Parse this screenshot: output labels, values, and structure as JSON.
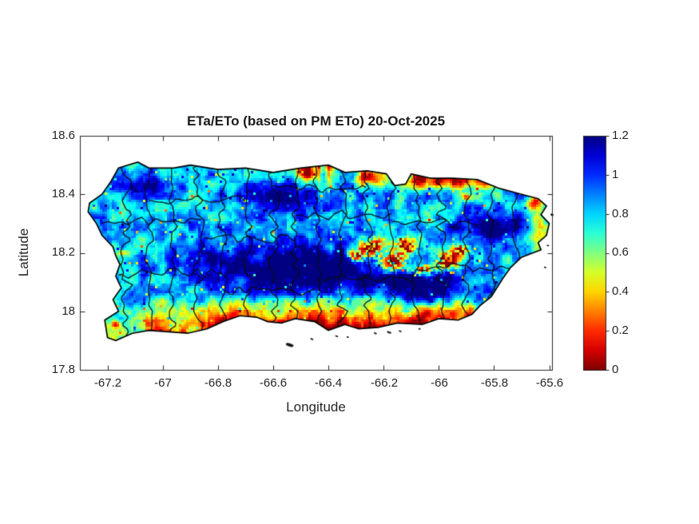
{
  "figure": {
    "background": "#ffffff",
    "kind": "MATLAB-style geographic heatmap figure"
  },
  "chart_data": {
    "type": "heatmap",
    "title": "ETa/ETo (based on PM ETo) 20-Oct-2025",
    "xlabel": "Longitude",
    "ylabel": "Latitude",
    "region": "Puerto Rico with municipality boundaries",
    "xlim": [
      -67.3,
      -65.59
    ],
    "ylim": [
      17.8,
      18.6
    ],
    "xticks": [
      -67.2,
      -67,
      -66.8,
      -66.6,
      -66.4,
      -66.2,
      -66,
      -65.8,
      -65.6
    ],
    "xtick_labels": [
      "-67.2",
      "-67",
      "-66.8",
      "-66.6",
      "-66.4",
      "-66.2",
      "-66",
      "-65.8",
      "-65.6"
    ],
    "yticks": [
      18.6,
      18.4,
      18.2,
      18,
      17.8
    ],
    "ytick_labels": [
      "18.6",
      "18.4",
      "18.2",
      "18",
      "17.8"
    ],
    "grid": false,
    "axis_color": "#262626",
    "boundary_color": "#111111",
    "colorbar": {
      "min": 0,
      "max": 1.2,
      "ticks": [
        1.2,
        1,
        0.8,
        0.6,
        0.4,
        0.2,
        0
      ],
      "tick_labels": [
        "1.2",
        "1",
        "0.8",
        "0.6",
        "0.4",
        "0.2",
        "0"
      ],
      "colormap": "jet reversed (0 = dark red, 0.2 = red, 0.4 = yellow, 0.6 = green, 0.8 = cyan, 1 = blue, 1.2 = dark blue)",
      "position": "right"
    },
    "base_value": 0.82,
    "field_features": [
      {
        "name": "cordillera-central-high-eta",
        "lon": -66.47,
        "lat": 18.15,
        "sx": 0.3,
        "sy": 0.075,
        "amp": 0.55
      },
      {
        "name": "cayey-east-ridge-high-eta",
        "lon": -66.05,
        "lat": 18.09,
        "sx": 0.16,
        "sy": 0.055,
        "amp": 0.5
      },
      {
        "name": "sierra-de-luquillo-high-eta",
        "lon": -65.82,
        "lat": 18.29,
        "sx": 0.1,
        "sy": 0.055,
        "amp": 0.5
      },
      {
        "name": "arecibo-karst-high",
        "lon": -66.58,
        "lat": 18.38,
        "sx": 0.17,
        "sy": 0.07,
        "amp": 0.32
      },
      {
        "name": "northwest-high",
        "lon": -67.05,
        "lat": 18.43,
        "sx": 0.09,
        "sy": 0.05,
        "amp": 0.28
      },
      {
        "name": "west-central-high",
        "lon": -66.85,
        "lat": 18.17,
        "sx": 0.13,
        "sy": 0.05,
        "amp": 0.25
      },
      {
        "name": "san-juan-urban-low",
        "lon": -65.95,
        "lat": 18.445,
        "sx": 0.16,
        "sy": 0.025,
        "amp": -0.62
      },
      {
        "name": "dorado-urban-low",
        "lon": -66.24,
        "lat": 18.455,
        "sx": 0.06,
        "sy": 0.022,
        "amp": -0.5
      },
      {
        "name": "arecibo-urban-dot",
        "lon": -66.49,
        "lat": 18.47,
        "sx": 0.035,
        "sy": 0.02,
        "amp": -0.55
      },
      {
        "name": "carolina-dot",
        "lon": -65.9,
        "lat": 18.39,
        "sx": 0.018,
        "sy": 0.012,
        "amp": -0.6
      },
      {
        "name": "east-coast-low-strip",
        "lon": -65.64,
        "lat": 18.3,
        "sx": 0.025,
        "sy": 0.07,
        "amp": -0.45
      },
      {
        "name": "fajardo-low",
        "lon": -65.655,
        "lat": 18.37,
        "sx": 0.03,
        "sy": 0.025,
        "amp": -0.5
      },
      {
        "name": "mayaguez-dot",
        "lon": -67.14,
        "lat": 18.2,
        "sx": 0.02,
        "sy": 0.012,
        "amp": -0.45
      },
      {
        "name": "cabo-rojo-dot",
        "lon": -67.17,
        "lat": 17.955,
        "sx": 0.018,
        "sy": 0.012,
        "amp": -0.6
      }
    ],
    "dry_cluster_blobs": [
      {
        "lon": -66.24,
        "lat": 18.22,
        "sx": 0.045,
        "sy": 0.03
      },
      {
        "lon": -66.17,
        "lat": 18.17,
        "sx": 0.05,
        "sy": 0.03
      },
      {
        "lon": -66.12,
        "lat": 18.22,
        "sx": 0.035,
        "sy": 0.025
      },
      {
        "lon": -66.3,
        "lat": 18.19,
        "sx": 0.03,
        "sy": 0.02
      },
      {
        "lon": -65.97,
        "lat": 18.17,
        "sx": 0.045,
        "sy": 0.03
      },
      {
        "lon": -65.92,
        "lat": 18.21,
        "sx": 0.03,
        "sy": 0.02
      },
      {
        "lon": -66.06,
        "lat": 18.14,
        "sx": 0.03,
        "sy": 0.02
      }
    ],
    "south_coast_dry_strip": {
      "start_lat": 18.055,
      "gain": 7.8,
      "strength_breaks": [
        [
          -67.3,
          0.2
        ],
        [
          -67.06,
          0.55
        ],
        [
          -66.84,
          1.0
        ],
        [
          -66.3,
          0.95
        ],
        [
          -66.22,
          1.0
        ],
        [
          -65.87,
          0.45
        ]
      ]
    },
    "north_coast_urban_strip": {
      "start_lat": 18.41,
      "lon_range": [
        -66.55,
        -65.7
      ],
      "gain": 6.5
    },
    "map": {
      "outline": [
        [
          -67.16,
          18.49
        ],
        [
          -67.09,
          18.51
        ],
        [
          -67.05,
          18.49
        ],
        [
          -66.96,
          18.49
        ],
        [
          -66.9,
          18.5
        ],
        [
          -66.8,
          18.485
        ],
        [
          -66.7,
          18.49
        ],
        [
          -66.6,
          18.475
        ],
        [
          -66.5,
          18.49
        ],
        [
          -66.4,
          18.5
        ],
        [
          -66.34,
          18.475
        ],
        [
          -66.26,
          18.48
        ],
        [
          -66.19,
          18.47
        ],
        [
          -66.16,
          18.43
        ],
        [
          -66.12,
          18.435
        ],
        [
          -66.1,
          18.47
        ],
        [
          -66.03,
          18.455
        ],
        [
          -65.95,
          18.455
        ],
        [
          -65.86,
          18.45
        ],
        [
          -65.78,
          18.42
        ],
        [
          -65.7,
          18.4
        ],
        [
          -65.64,
          18.385
        ],
        [
          -65.61,
          18.36
        ],
        [
          -65.63,
          18.33
        ],
        [
          -65.6,
          18.3
        ],
        [
          -65.61,
          18.26
        ],
        [
          -65.64,
          18.235
        ],
        [
          -65.63,
          18.21
        ],
        [
          -65.7,
          18.185
        ],
        [
          -65.74,
          18.15
        ],
        [
          -65.77,
          18.11
        ],
        [
          -65.81,
          18.05
        ],
        [
          -65.85,
          18.02
        ],
        [
          -65.88,
          17.99
        ],
        [
          -65.93,
          17.97
        ],
        [
          -66.0,
          17.975
        ],
        [
          -66.06,
          17.955
        ],
        [
          -66.15,
          17.96
        ],
        [
          -66.22,
          17.945
        ],
        [
          -66.29,
          17.94
        ],
        [
          -66.34,
          17.955
        ],
        [
          -66.4,
          17.935
        ],
        [
          -66.45,
          17.965
        ],
        [
          -66.52,
          17.975
        ],
        [
          -66.57,
          17.96
        ],
        [
          -66.62,
          17.965
        ],
        [
          -66.66,
          17.98
        ],
        [
          -66.72,
          17.985
        ],
        [
          -66.78,
          17.965
        ],
        [
          -66.84,
          17.94
        ],
        [
          -66.91,
          17.925
        ],
        [
          -66.98,
          17.93
        ],
        [
          -67.05,
          17.935
        ],
        [
          -67.11,
          17.925
        ],
        [
          -67.17,
          17.9
        ],
        [
          -67.2,
          17.91
        ],
        [
          -67.21,
          17.97
        ],
        [
          -67.16,
          18.0
        ],
        [
          -67.18,
          18.04
        ],
        [
          -67.15,
          18.08
        ],
        [
          -67.17,
          18.12
        ],
        [
          -67.155,
          18.16
        ],
        [
          -67.17,
          18.19
        ],
        [
          -67.18,
          18.22
        ],
        [
          -67.22,
          18.26
        ],
        [
          -67.24,
          18.3
        ],
        [
          -67.27,
          18.34
        ],
        [
          -67.265,
          18.37
        ],
        [
          -67.22,
          18.4
        ],
        [
          -67.19,
          18.44
        ]
      ],
      "islets": [
        [
          -66.54,
          17.885,
          5,
          2
        ],
        [
          -66.46,
          17.905,
          2,
          1
        ],
        [
          -66.37,
          17.915,
          2,
          1
        ],
        [
          -66.33,
          17.912,
          1.5,
          1
        ],
        [
          -66.23,
          17.925,
          2,
          1
        ],
        [
          -66.18,
          17.928,
          3,
          1.2
        ],
        [
          -66.14,
          17.932,
          2,
          1
        ],
        [
          -66.07,
          17.94,
          1.5,
          1
        ],
        [
          -65.59,
          18.33,
          2,
          1.5
        ],
        [
          -65.605,
          18.225,
          1.5,
          1
        ],
        [
          -65.615,
          18.15,
          1.5,
          1
        ]
      ],
      "boundaries": {
        "vertical_lon": [
          -67.13,
          -67.05,
          -66.96,
          -66.87,
          -66.78,
          -66.69,
          -66.6,
          -66.52,
          -66.44,
          -66.35,
          -66.26,
          -66.17,
          -66.08,
          -65.99,
          -65.9,
          -65.81,
          -65.72
        ],
        "horizontal_segments": [
          [
            18.31,
            -67.22,
            -66.85
          ],
          [
            18.25,
            -66.85,
            -66.52
          ],
          [
            18.33,
            -66.52,
            -66.17
          ],
          [
            18.3,
            -66.17,
            -65.85
          ],
          [
            18.13,
            -67.16,
            -66.78
          ],
          [
            18.07,
            -66.78,
            -66.44
          ],
          [
            18.11,
            -66.44,
            -66.08
          ],
          [
            18.15,
            -66.08,
            -65.7
          ],
          [
            18.42,
            -66.6,
            -66.26
          ],
          [
            18.38,
            -67.05,
            -66.69
          ]
        ]
      }
    }
  }
}
